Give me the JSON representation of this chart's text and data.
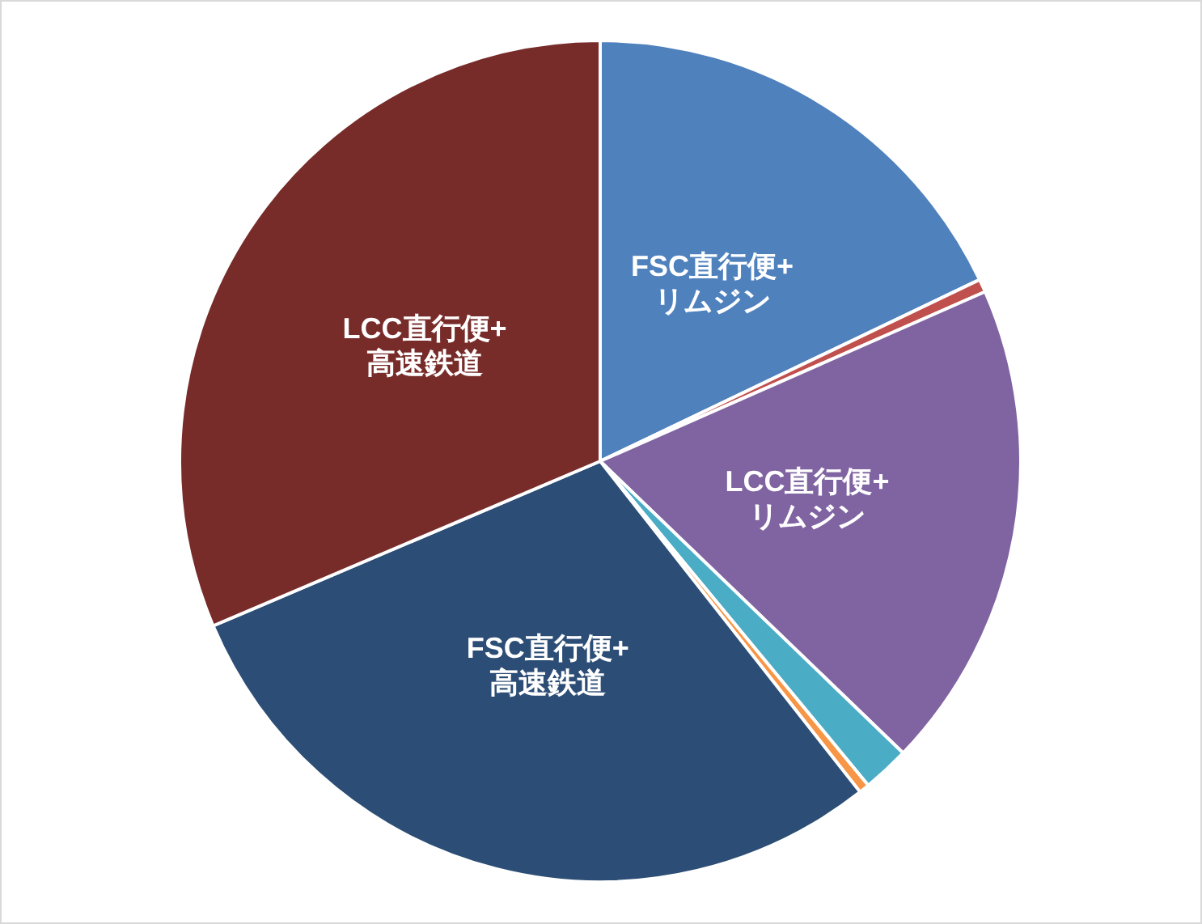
{
  "chart_data": {
    "type": "pie",
    "categories": [
      "FSC直行便+\nリムジン",
      null,
      "LCC直行便+\nリムジン",
      null,
      null,
      "FSC直行便+\n高速鉄道",
      "LCC直行便+\n高速鉄道"
    ],
    "values": [
      17.9,
      0.5,
      18.8,
      1.8,
      0.4,
      29.2,
      31.4
    ],
    "colors": [
      "#4f81bd",
      "#c0504d",
      "#8064a2",
      "#4bacc6",
      "#f79646",
      "#2c4d75",
      "#772c2a"
    ]
  }
}
